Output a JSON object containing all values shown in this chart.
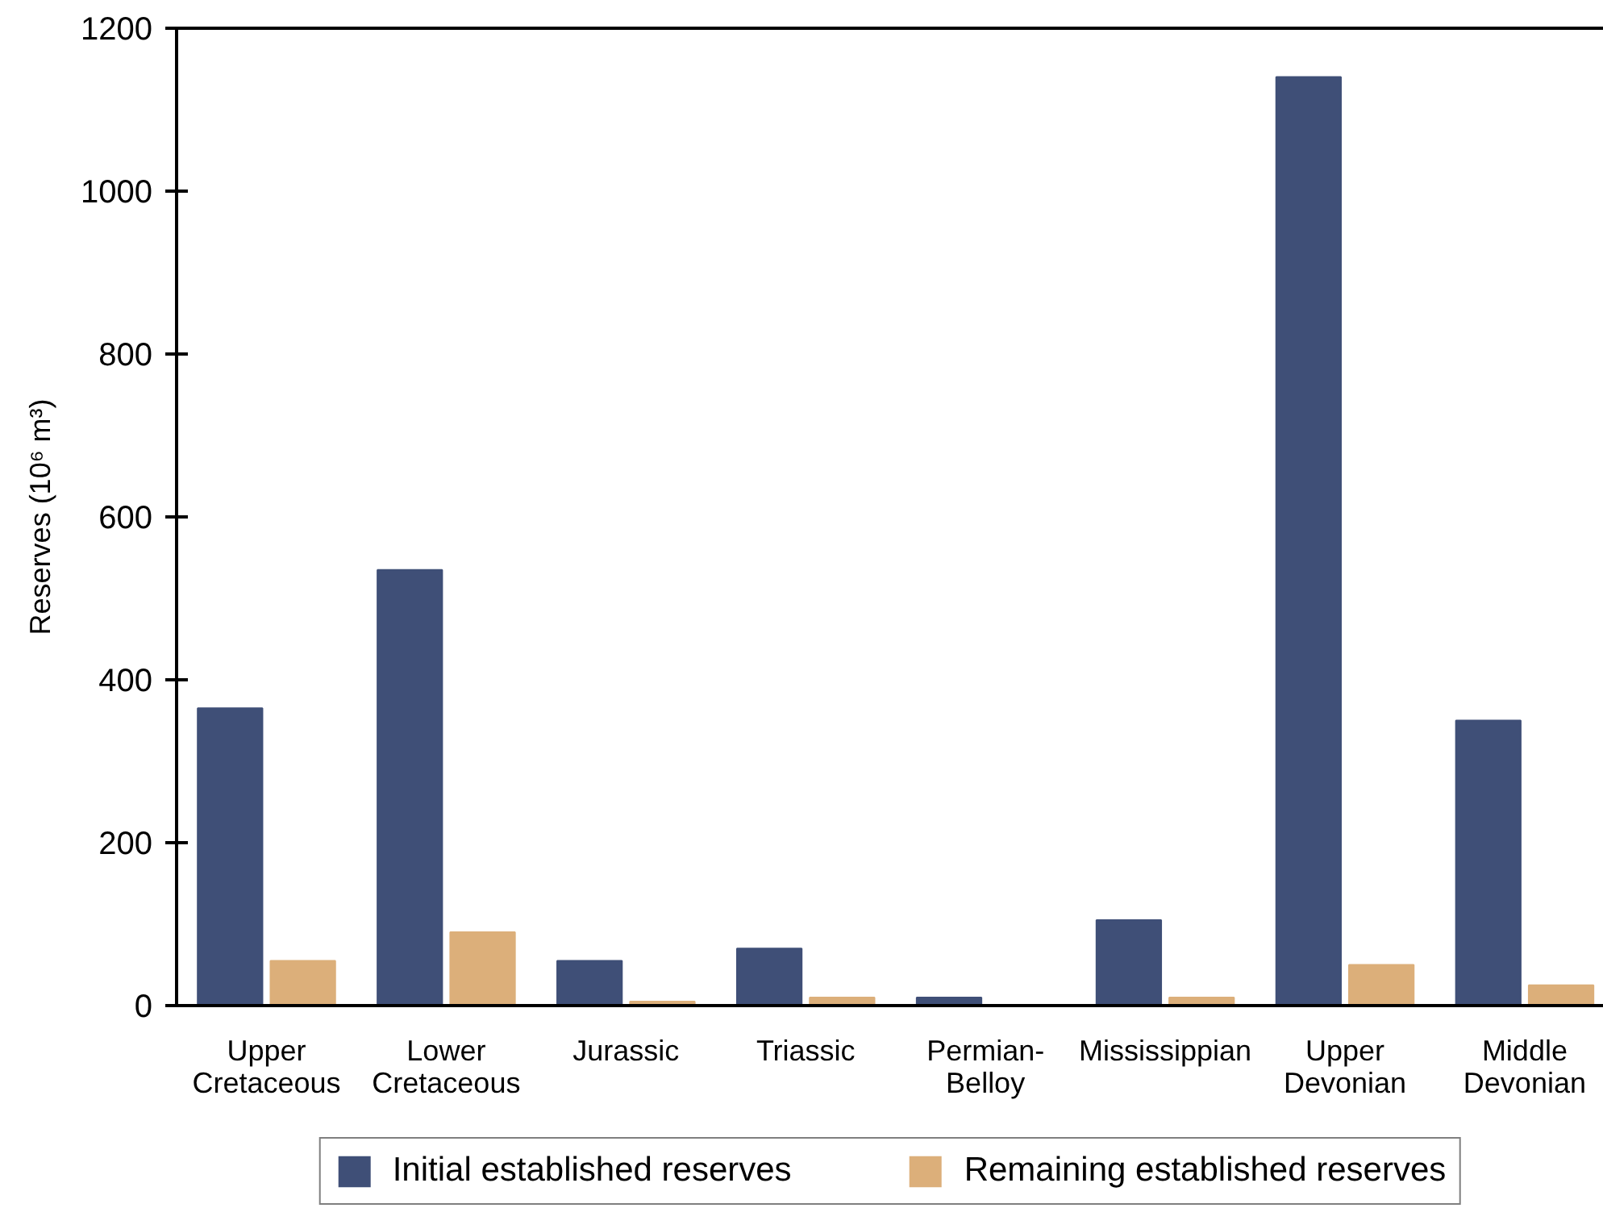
{
  "chart_data": {
    "type": "bar",
    "categories": [
      "Upper Cretaceous",
      "Lower Cretaceous",
      "Jurassic",
      "Triassic",
      "Permian-Belloy",
      "Mississippian",
      "Upper Devonian",
      "Middle Devonian"
    ],
    "series": [
      {
        "name": "Initial established reserves",
        "color": "#3f4f77",
        "values": [
          365,
          535,
          55,
          70,
          10,
          105,
          1140,
          350
        ]
      },
      {
        "name": "Remaining established reserves",
        "color": "#dcaf7a",
        "values": [
          55,
          90,
          5,
          10,
          null,
          10,
          50,
          25
        ]
      }
    ],
    "ylabel": "Reserves (10⁶ m³)",
    "ylim": [
      0,
      1200
    ],
    "yticks": [
      0,
      200,
      400,
      600,
      800,
      1000,
      1200
    ],
    "legend": "bottom"
  }
}
